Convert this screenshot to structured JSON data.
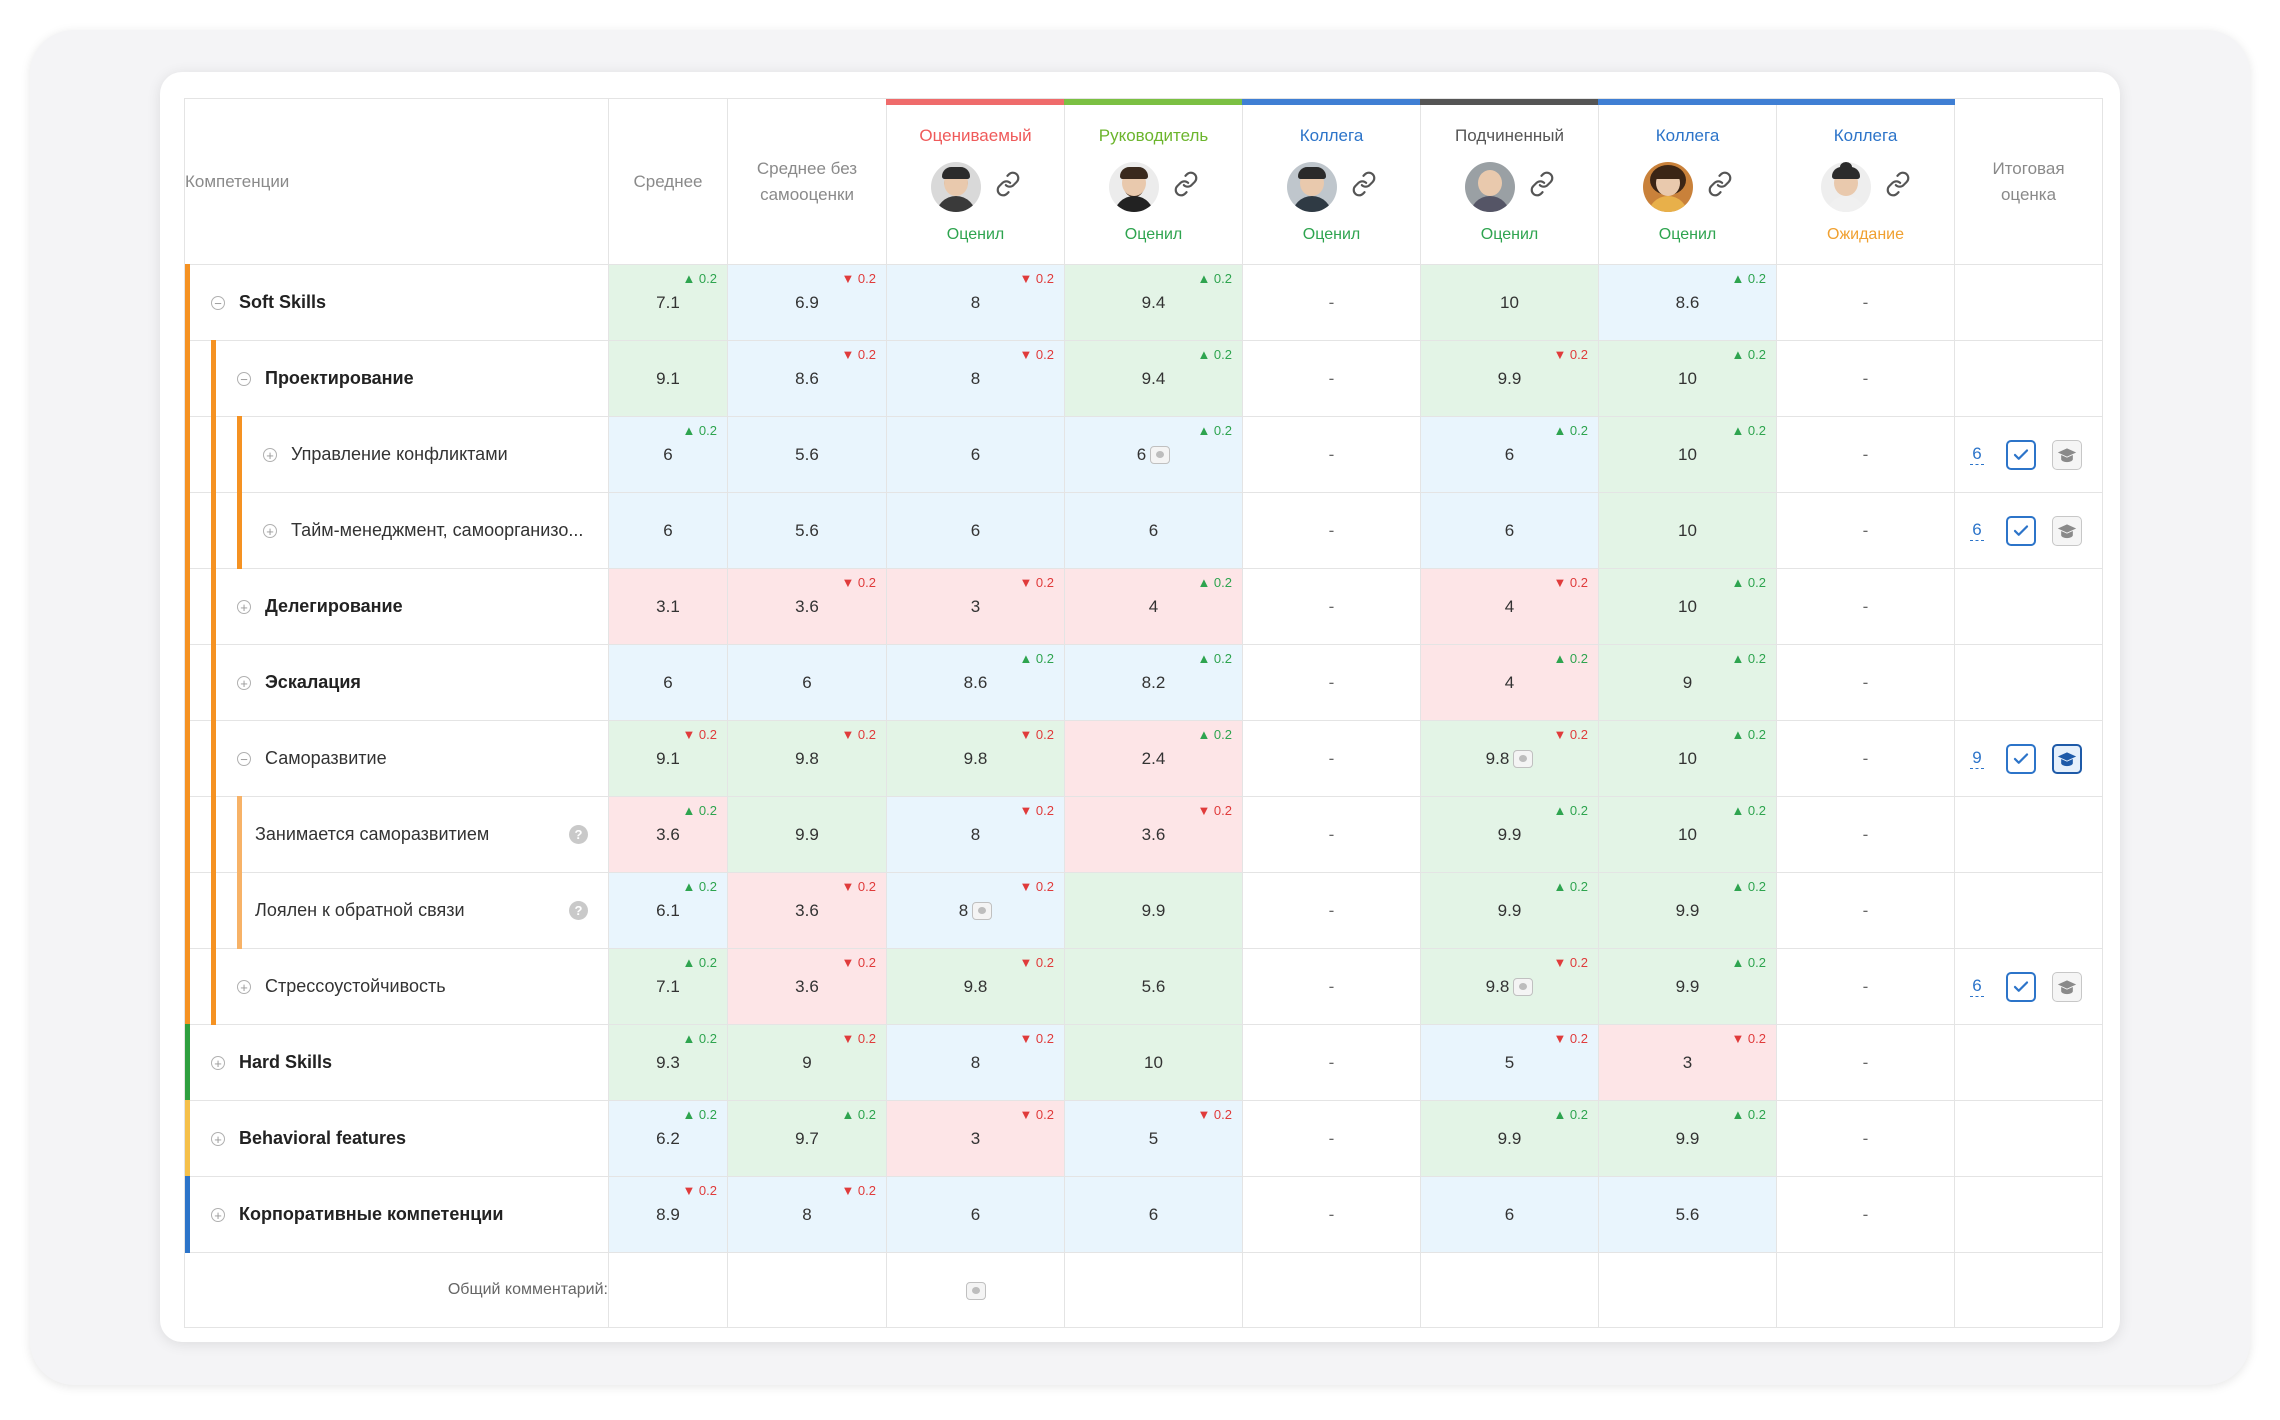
{
  "colors": {
    "orange": "#f59222",
    "light_orange": "#f7b267",
    "green": "#2e9f3e",
    "yellow": "#f5c04a",
    "blue": "#2c74c9",
    "rater_self": "#ef6b6b",
    "rater_manager": "#7bc043",
    "rater_colleague": "#3f7fd4",
    "rater_subordinate": "#555555",
    "status_done": "#2ea44f",
    "status_waiting": "#f0a030"
  },
  "header": {
    "competencies": "Компетенции",
    "average": "Среднее",
    "average_no_self": "Среднее без самооценки",
    "final": "Итоговая оценка"
  },
  "raters": [
    {
      "role": "Оцениваемый",
      "status": "Оценил",
      "role_color": "#ef5a5a",
      "status_color": "#2ea44f",
      "avatar": "avatar-man-glasses-icon"
    },
    {
      "role": "Руководитель",
      "status": "Оценил",
      "role_color": "#6cb52d",
      "status_color": "#2ea44f",
      "avatar": "avatar-man-beard-icon"
    },
    {
      "role": "Коллега",
      "status": "Оценил",
      "role_color": "#2c74c9",
      "status_color": "#2ea44f",
      "avatar": "avatar-man-short-hair-icon"
    },
    {
      "role": "Подчиненный",
      "status": "Оценил",
      "role_color": "#555555",
      "status_color": "#2ea44f",
      "avatar": "avatar-man-bald-icon"
    },
    {
      "role": "Коллега",
      "status": "Оценил",
      "role_color": "#2c74c9",
      "status_color": "#2ea44f",
      "avatar": "avatar-woman-curly-icon"
    },
    {
      "role": "Коллега",
      "status": "Ожидание",
      "role_color": "#2c74c9",
      "status_color": "#f0a030",
      "avatar": "avatar-woman-bun-icon"
    }
  ],
  "rows": [
    {
      "name": "Soft Skills",
      "toggle": "−",
      "bold": true,
      "cells": [
        {
          "v": "7.1",
          "bg": "g",
          "d": "up"
        },
        {
          "v": "6.9",
          "bg": "b",
          "d": "down"
        },
        {
          "v": "8",
          "bg": "b",
          "d": "down"
        },
        {
          "v": "9.4",
          "bg": "g",
          "d": "up"
        },
        {
          "v": "-",
          "bg": "w"
        },
        {
          "v": "10",
          "bg": "g"
        },
        {
          "v": "8.6",
          "bg": "b",
          "d": "up"
        },
        {
          "v": "-",
          "bg": "w"
        }
      ]
    },
    {
      "name": "Проектирование",
      "toggle": "−",
      "bold": true,
      "cells": [
        {
          "v": "9.1",
          "bg": "g"
        },
        {
          "v": "8.6",
          "bg": "b",
          "d": "down"
        },
        {
          "v": "8",
          "bg": "b",
          "d": "down"
        },
        {
          "v": "9.4",
          "bg": "g",
          "d": "up"
        },
        {
          "v": "-",
          "bg": "w"
        },
        {
          "v": "9.9",
          "bg": "g",
          "d": "down"
        },
        {
          "v": "10",
          "bg": "g",
          "d": "up"
        },
        {
          "v": "-",
          "bg": "w"
        }
      ]
    },
    {
      "name": "Управление конфликтами",
      "toggle": "+",
      "bold": false,
      "cells": [
        {
          "v": "6",
          "bg": "b",
          "d": "up"
        },
        {
          "v": "5.6",
          "bg": "b"
        },
        {
          "v": "6",
          "bg": "b"
        },
        {
          "v": "6",
          "bg": "b",
          "d": "up",
          "comment": true
        },
        {
          "v": "-",
          "bg": "w"
        },
        {
          "v": "6",
          "bg": "b",
          "d": "up"
        },
        {
          "v": "10",
          "bg": "g",
          "d": "up"
        },
        {
          "v": "-",
          "bg": "w"
        }
      ],
      "final": {
        "value": "6",
        "edu_active": false
      }
    },
    {
      "name": "Тайм-менеджмент, самоорганизо...",
      "toggle": "+",
      "bold": false,
      "cells": [
        {
          "v": "6",
          "bg": "b"
        },
        {
          "v": "5.6",
          "bg": "b"
        },
        {
          "v": "6",
          "bg": "b"
        },
        {
          "v": "6",
          "bg": "b"
        },
        {
          "v": "-",
          "bg": "w"
        },
        {
          "v": "6",
          "bg": "b"
        },
        {
          "v": "10",
          "bg": "g"
        },
        {
          "v": "-",
          "bg": "w"
        }
      ],
      "final": {
        "value": "6",
        "edu_active": false
      }
    },
    {
      "name": "Делегирование",
      "toggle": "+",
      "bold": true,
      "cells": [
        {
          "v": "3.1",
          "bg": "r"
        },
        {
          "v": "3.6",
          "bg": "r",
          "d": "down"
        },
        {
          "v": "3",
          "bg": "r",
          "d": "down"
        },
        {
          "v": "4",
          "bg": "r",
          "d": "up"
        },
        {
          "v": "-",
          "bg": "w"
        },
        {
          "v": "4",
          "bg": "r",
          "d": "down"
        },
        {
          "v": "10",
          "bg": "g",
          "d": "up"
        },
        {
          "v": "-",
          "bg": "w"
        }
      ]
    },
    {
      "name": "Эскалация",
      "toggle": "+",
      "bold": true,
      "cells": [
        {
          "v": "6",
          "bg": "b"
        },
        {
          "v": "6",
          "bg": "b"
        },
        {
          "v": "8.6",
          "bg": "b",
          "d": "up"
        },
        {
          "v": "8.2",
          "bg": "b",
          "d": "up"
        },
        {
          "v": "-",
          "bg": "w"
        },
        {
          "v": "4",
          "bg": "r",
          "d": "up"
        },
        {
          "v": "9",
          "bg": "g",
          "d": "up"
        },
        {
          "v": "-",
          "bg": "w"
        }
      ]
    },
    {
      "name": "Саморазвитие",
      "toggle": "−",
      "bold": false,
      "cells": [
        {
          "v": "9.1",
          "bg": "g",
          "d": "down"
        },
        {
          "v": "9.8",
          "bg": "g",
          "d": "down"
        },
        {
          "v": "9.8",
          "bg": "g",
          "d": "down"
        },
        {
          "v": "2.4",
          "bg": "r",
          "d": "up"
        },
        {
          "v": "-",
          "bg": "w"
        },
        {
          "v": "9.8",
          "bg": "g",
          "d": "down",
          "comment": true
        },
        {
          "v": "10",
          "bg": "g",
          "d": "up"
        },
        {
          "v": "-",
          "bg": "w"
        }
      ],
      "final": {
        "value": "9",
        "edu_active": true
      }
    },
    {
      "name": "Занимается саморазвитием",
      "toggle": "",
      "bold": false,
      "help": true,
      "cells": [
        {
          "v": "3.6",
          "bg": "r",
          "d": "up"
        },
        {
          "v": "9.9",
          "bg": "g"
        },
        {
          "v": "8",
          "bg": "b",
          "d": "down"
        },
        {
          "v": "3.6",
          "bg": "r",
          "d": "down"
        },
        {
          "v": "-",
          "bg": "w"
        },
        {
          "v": "9.9",
          "bg": "g",
          "d": "up"
        },
        {
          "v": "10",
          "bg": "g",
          "d": "up"
        },
        {
          "v": "-",
          "bg": "w"
        }
      ]
    },
    {
      "name": "Лоялен к обратной связи",
      "toggle": "",
      "bold": false,
      "help": true,
      "cells": [
        {
          "v": "6.1",
          "bg": "b",
          "d": "up"
        },
        {
          "v": "3.6",
          "bg": "r",
          "d": "down"
        },
        {
          "v": "8",
          "bg": "b",
          "d": "down",
          "comment": true
        },
        {
          "v": "9.9",
          "bg": "g"
        },
        {
          "v": "-",
          "bg": "w"
        },
        {
          "v": "9.9",
          "bg": "g",
          "d": "up"
        },
        {
          "v": "9.9",
          "bg": "g",
          "d": "up"
        },
        {
          "v": "-",
          "bg": "w"
        }
      ]
    },
    {
      "name": "Стрессоустойчивость",
      "toggle": "+",
      "bold": false,
      "cells": [
        {
          "v": "7.1",
          "bg": "g",
          "d": "up"
        },
        {
          "v": "3.6",
          "bg": "r",
          "d": "down"
        },
        {
          "v": "9.8",
          "bg": "g",
          "d": "down"
        },
        {
          "v": "5.6",
          "bg": "g"
        },
        {
          "v": "-",
          "bg": "w"
        },
        {
          "v": "9.8",
          "bg": "g",
          "d": "down",
          "comment": true
        },
        {
          "v": "9.9",
          "bg": "g",
          "d": "up"
        },
        {
          "v": "-",
          "bg": "w"
        }
      ],
      "final": {
        "value": "6",
        "edu_active": false
      }
    },
    {
      "name": "Hard Skills",
      "toggle": "+",
      "bold": true,
      "cells": [
        {
          "v": "9.3",
          "bg": "g",
          "d": "up"
        },
        {
          "v": "9",
          "bg": "g",
          "d": "down"
        },
        {
          "v": "8",
          "bg": "b",
          "d": "down"
        },
        {
          "v": "10",
          "bg": "g"
        },
        {
          "v": "-",
          "bg": "w"
        },
        {
          "v": "5",
          "bg": "b",
          "d": "down"
        },
        {
          "v": "3",
          "bg": "r",
          "d": "down"
        },
        {
          "v": "-",
          "bg": "w"
        }
      ]
    },
    {
      "name": "Behavioral features",
      "toggle": "+",
      "bold": true,
      "cells": [
        {
          "v": "6.2",
          "bg": "b",
          "d": "up"
        },
        {
          "v": "9.7",
          "bg": "g",
          "d": "up"
        },
        {
          "v": "3",
          "bg": "r",
          "d": "down"
        },
        {
          "v": "5",
          "bg": "b",
          "d": "down"
        },
        {
          "v": "-",
          "bg": "w"
        },
        {
          "v": "9.9",
          "bg": "g",
          "d": "up"
        },
        {
          "v": "9.9",
          "bg": "g",
          "d": "up"
        },
        {
          "v": "-",
          "bg": "w"
        }
      ]
    },
    {
      "name": "Корпоративные компетенции",
      "toggle": "+",
      "bold": true,
      "cells": [
        {
          "v": "8.9",
          "bg": "b",
          "d": "down"
        },
        {
          "v": "8",
          "bg": "b",
          "d": "down"
        },
        {
          "v": "6",
          "bg": "b"
        },
        {
          "v": "6",
          "bg": "b"
        },
        {
          "v": "-",
          "bg": "w"
        },
        {
          "v": "6",
          "bg": "b"
        },
        {
          "v": "5.6",
          "bg": "b"
        },
        {
          "v": "-",
          "bg": "w"
        }
      ]
    }
  ],
  "delta_value": "0.2",
  "general_comment_label": "Общий комментарий:"
}
